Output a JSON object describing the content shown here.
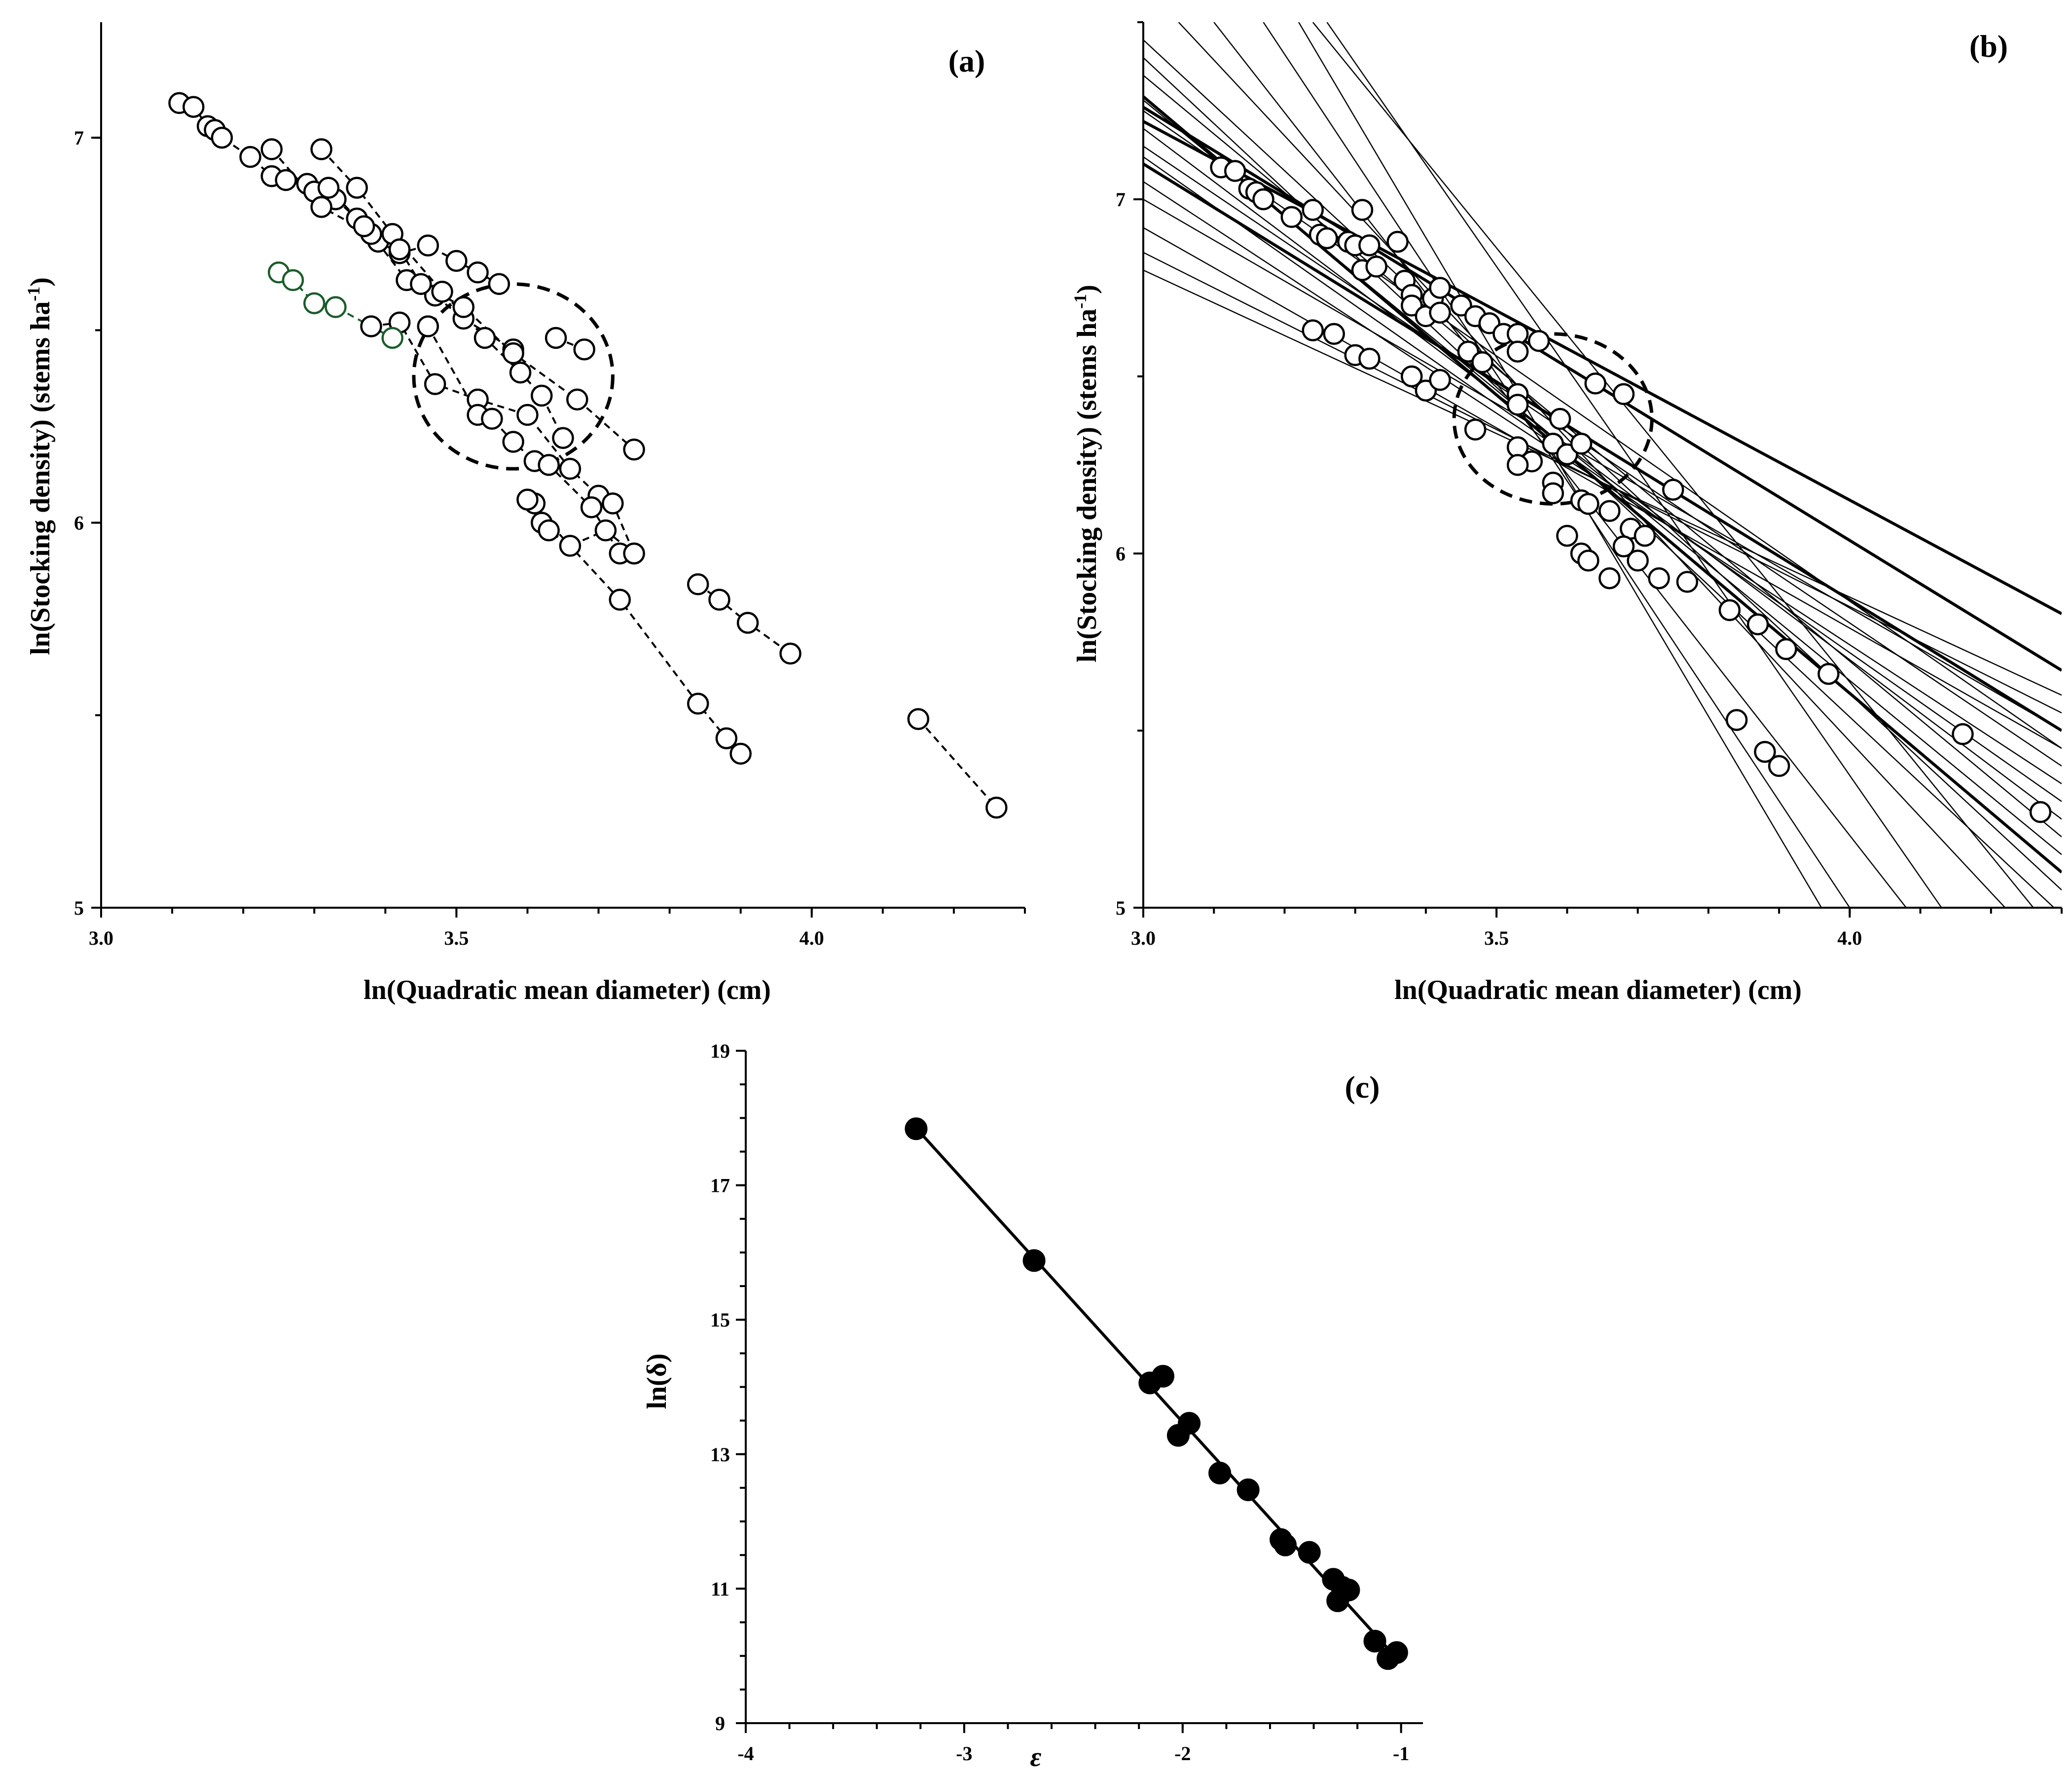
{
  "chart_data": [
    {
      "panel": "(a)",
      "type": "scatter",
      "xlabel": "ln(Quadratic  mean diameter) (cm)",
      "ylabel_main": "ln(Stocking density) (stems ha",
      "ylabel_sup": "-1",
      "ylabel_end": ")",
      "xlim": [
        3.0,
        4.3
      ],
      "ylim": [
        5.0,
        7.3
      ],
      "xticks": [
        3.0,
        3.5,
        4.0
      ],
      "xtick_labels": [
        "3.0",
        "3.5",
        "4.0"
      ],
      "yticks": [
        5,
        6,
        7
      ],
      "ytick_labels": [
        "5",
        "6",
        "7"
      ],
      "dashed_ellipse": {
        "cx": 3.58,
        "cy": 6.38,
        "rx": 0.14,
        "ry": 0.24
      },
      "series": [
        {
          "name": "plot-1",
          "color": "#000000",
          "points": [
            [
              3.11,
              7.09
            ],
            [
              3.13,
              7.08
            ],
            [
              3.15,
              7.03
            ],
            [
              3.16,
              7.02
            ],
            [
              3.17,
              7.0
            ],
            [
              3.21,
              6.95
            ],
            [
              3.24,
              6.9
            ],
            [
              3.26,
              6.89
            ],
            [
              3.29,
              6.88
            ],
            [
              3.3,
              6.86
            ],
            [
              3.33,
              6.84
            ],
            [
              3.36,
              6.79
            ],
            [
              3.39,
              6.73
            ],
            [
              3.42,
              6.7
            ],
            [
              3.46,
              6.72
            ],
            [
              3.5,
              6.68
            ],
            [
              3.53,
              6.65
            ],
            [
              3.56,
              6.62
            ]
          ]
        },
        {
          "name": "plot-2",
          "color": "#000000",
          "points": [
            [
              3.24,
              6.97
            ],
            [
              3.31,
              6.82
            ],
            [
              3.38,
              6.75
            ],
            [
              3.43,
              6.63
            ],
            [
              3.47,
              6.59
            ],
            [
              3.51,
              6.53
            ],
            [
              3.58,
              6.45
            ]
          ]
        },
        {
          "name": "plot-3",
          "color": "#000000",
          "points": [
            [
              3.31,
              6.97
            ],
            [
              3.36,
              6.87
            ],
            [
              3.41,
              6.75
            ],
            [
              3.48,
              6.6
            ],
            [
              3.54,
              6.48
            ],
            [
              3.59,
              6.39
            ],
            [
              3.62,
              6.33
            ],
            [
              3.65,
              6.22
            ]
          ]
        },
        {
          "name": "plot-4",
          "color": "#000000",
          "points": [
            [
              3.32,
              6.87
            ],
            [
              3.37,
              6.77
            ],
            [
              3.42,
              6.71
            ],
            [
              3.45,
              6.62
            ],
            [
              3.51,
              6.56
            ],
            [
              3.58,
              6.44
            ],
            [
              3.67,
              6.32
            ],
            [
              3.75,
              6.19
            ]
          ]
        },
        {
          "name": "plot-5",
          "color": "#000000",
          "points": [
            [
              3.64,
              6.48
            ],
            [
              3.68,
              6.45
            ]
          ]
        },
        {
          "name": "plot-6",
          "color": "#000000",
          "points": [
            [
              3.38,
              6.51
            ],
            [
              3.42,
              6.52
            ],
            [
              3.47,
              6.36
            ],
            [
              3.53,
              6.32
            ],
            [
              3.6,
              6.28
            ],
            [
              3.66,
              6.14
            ],
            [
              3.7,
              6.07
            ],
            [
              3.72,
              6.05
            ],
            [
              3.75,
              5.92
            ]
          ]
        },
        {
          "name": "plot-7",
          "color": "#000000",
          "points": [
            [
              3.46,
              6.51
            ],
            [
              3.53,
              6.28
            ],
            [
              3.55,
              6.27
            ],
            [
              3.58,
              6.21
            ],
            [
              3.61,
              6.16
            ],
            [
              3.63,
              6.15
            ],
            [
              3.69,
              6.04
            ],
            [
              3.73,
              5.92
            ]
          ]
        },
        {
          "name": "plot-8",
          "color": "#000000",
          "points": [
            [
              3.61,
              6.05
            ],
            [
              3.62,
              6.0
            ],
            [
              3.63,
              5.98
            ],
            [
              3.66,
              5.94
            ],
            [
              3.71,
              5.98
            ],
            [
              3.75,
              5.92
            ]
          ]
        },
        {
          "name": "plot-9",
          "color": "#000000",
          "points": [
            [
              3.84,
              5.84
            ],
            [
              3.87,
              5.8
            ],
            [
              3.91,
              5.74
            ],
            [
              3.97,
              5.66
            ]
          ]
        },
        {
          "name": "plot-10",
          "color": "#000000",
          "points": [
            [
              3.6,
              6.06
            ],
            [
              3.73,
              5.8
            ],
            [
              3.84,
              5.53
            ],
            [
              3.88,
              5.44
            ],
            [
              3.9,
              5.4
            ]
          ]
        },
        {
          "name": "plot-11",
          "color": "#000000",
          "points": [
            [
              4.15,
              5.49
            ],
            [
              4.26,
              5.26
            ]
          ]
        },
        {
          "name": "plot-green",
          "color": "#1a5c2a",
          "points": [
            [
              3.25,
              6.65
            ],
            [
              3.27,
              6.63
            ],
            [
              3.3,
              6.57
            ],
            [
              3.33,
              6.56
            ],
            [
              3.41,
              6.48
            ]
          ]
        }
      ]
    },
    {
      "panel": "(b)",
      "type": "scatter-with-lines",
      "xlabel": "ln(Quadratic  mean diameter) (cm)",
      "ylabel_main": "ln(Stocking density) (stems ha",
      "ylabel_sup": "-1",
      "ylabel_end": ")",
      "xlim": [
        3.0,
        4.3
      ],
      "ylim": [
        5.0,
        7.5
      ],
      "xticks": [
        3.0,
        3.5,
        4.0
      ],
      "xtick_labels": [
        "3.0",
        "3.5",
        "4.0"
      ],
      "yticks": [
        5,
        6,
        7
      ],
      "ytick_labels": [
        "5",
        "6",
        "7"
      ],
      "dashed_ellipse": {
        "cx": 3.58,
        "cy": 6.38,
        "rx": 0.14,
        "ry": 0.24
      },
      "points": [
        [
          3.11,
          7.09
        ],
        [
          3.13,
          7.08
        ],
        [
          3.15,
          7.03
        ],
        [
          3.16,
          7.02
        ],
        [
          3.17,
          7.0
        ],
        [
          3.21,
          6.95
        ],
        [
          3.24,
          6.97
        ],
        [
          3.25,
          6.9
        ],
        [
          3.26,
          6.89
        ],
        [
          3.29,
          6.88
        ],
        [
          3.3,
          6.87
        ],
        [
          3.31,
          6.97
        ],
        [
          3.32,
          6.87
        ],
        [
          3.31,
          6.8
        ],
        [
          3.33,
          6.81
        ],
        [
          3.36,
          6.88
        ],
        [
          3.37,
          6.77
        ],
        [
          3.38,
          6.73
        ],
        [
          3.38,
          6.7
        ],
        [
          3.4,
          6.67
        ],
        [
          3.41,
          6.72
        ],
        [
          3.42,
          6.75
        ],
        [
          3.42,
          6.68
        ],
        [
          3.45,
          6.7
        ],
        [
          3.47,
          6.67
        ],
        [
          3.49,
          6.65
        ],
        [
          3.51,
          6.62
        ],
        [
          3.53,
          6.62
        ],
        [
          3.53,
          6.57
        ],
        [
          3.56,
          6.6
        ],
        [
          3.46,
          6.57
        ],
        [
          3.48,
          6.54
        ],
        [
          3.24,
          6.63
        ],
        [
          3.27,
          6.62
        ],
        [
          3.3,
          6.56
        ],
        [
          3.32,
          6.55
        ],
        [
          3.38,
          6.5
        ],
        [
          3.4,
          6.46
        ],
        [
          3.42,
          6.49
        ],
        [
          3.47,
          6.35
        ],
        [
          3.53,
          6.45
        ],
        [
          3.53,
          6.42
        ],
        [
          3.64,
          6.48
        ],
        [
          3.68,
          6.45
        ],
        [
          3.53,
          6.3
        ],
        [
          3.55,
          6.26
        ],
        [
          3.53,
          6.25
        ],
        [
          3.58,
          6.31
        ],
        [
          3.59,
          6.38
        ],
        [
          3.6,
          6.28
        ],
        [
          3.62,
          6.31
        ],
        [
          3.58,
          6.2
        ],
        [
          3.58,
          6.17
        ],
        [
          3.62,
          6.15
        ],
        [
          3.63,
          6.14
        ],
        [
          3.66,
          6.12
        ],
        [
          3.69,
          6.07
        ],
        [
          3.71,
          6.05
        ],
        [
          3.68,
          6.02
        ],
        [
          3.7,
          5.98
        ],
        [
          3.75,
          6.18
        ],
        [
          3.6,
          6.05
        ],
        [
          3.62,
          6.0
        ],
        [
          3.63,
          5.98
        ],
        [
          3.66,
          5.93
        ],
        [
          3.73,
          5.93
        ],
        [
          3.77,
          5.92
        ],
        [
          3.83,
          5.84
        ],
        [
          3.87,
          5.8
        ],
        [
          3.91,
          5.73
        ],
        [
          3.97,
          5.66
        ],
        [
          3.84,
          5.53
        ],
        [
          3.88,
          5.44
        ],
        [
          3.9,
          5.4
        ],
        [
          4.16,
          5.49
        ],
        [
          4.27,
          5.27
        ]
      ],
      "lines": [
        {
          "x1": 3.0,
          "y1": 7.22,
          "x2": 4.3,
          "y2": 5.83,
          "weight": "bold"
        },
        {
          "x1": 3.0,
          "y1": 7.26,
          "x2": 4.3,
          "y2": 5.67,
          "weight": "bold"
        },
        {
          "x1": 3.0,
          "y1": 7.1,
          "x2": 4.3,
          "y2": 5.5,
          "weight": "bold"
        },
        {
          "x1": 3.0,
          "y1": 7.29,
          "x2": 4.3,
          "y2": 5.1,
          "weight": "bold"
        },
        {
          "x1": 3.0,
          "y1": 6.92,
          "x2": 4.3,
          "y2": 5.45,
          "weight": "thin"
        },
        {
          "x1": 3.0,
          "y1": 6.85,
          "x2": 4.3,
          "y2": 5.55,
          "weight": "thin"
        },
        {
          "x1": 3.0,
          "y1": 6.8,
          "x2": 4.3,
          "y2": 5.6,
          "weight": "thin"
        },
        {
          "x1": 3.0,
          "y1": 7.05,
          "x2": 4.3,
          "y2": 5.35,
          "weight": "thin"
        },
        {
          "x1": 3.0,
          "y1": 7.15,
          "x2": 4.3,
          "y2": 5.4,
          "weight": "thin"
        },
        {
          "x1": 3.0,
          "y1": 7.2,
          "x2": 4.3,
          "y2": 5.25,
          "weight": "thin"
        },
        {
          "x1": 3.0,
          "y1": 7.28,
          "x2": 4.3,
          "y2": 5.15,
          "weight": "thin"
        },
        {
          "x1": 3.0,
          "y1": 7.35,
          "x2": 4.3,
          "y2": 5.2,
          "weight": "thin"
        },
        {
          "x1": 3.0,
          "y1": 7.4,
          "x2": 4.3,
          "y2": 4.98,
          "weight": "thin"
        },
        {
          "x1": 3.0,
          "y1": 7.25,
          "x2": 4.3,
          "y2": 5.45,
          "weight": "thin"
        },
        {
          "x1": 3.0,
          "y1": 7.12,
          "x2": 4.3,
          "y2": 5.3,
          "weight": "thin"
        },
        {
          "x1": 3.0,
          "y1": 7.0,
          "x2": 4.3,
          "y2": 5.5,
          "weight": "thin"
        },
        {
          "x1": 3.0,
          "y1": 7.45,
          "x2": 4.3,
          "y2": 5.05,
          "weight": "thin"
        },
        {
          "x1": 3.05,
          "y1": 7.5,
          "x2": 4.22,
          "y2": 5.0,
          "weight": "thin"
        },
        {
          "x1": 3.1,
          "y1": 7.5,
          "x2": 4.08,
          "y2": 5.0,
          "weight": "thin"
        },
        {
          "x1": 3.17,
          "y1": 7.5,
          "x2": 4.0,
          "y2": 5.0,
          "weight": "thin"
        },
        {
          "x1": 3.22,
          "y1": 7.5,
          "x2": 3.96,
          "y2": 5.0,
          "weight": "thin"
        },
        {
          "x1": 3.26,
          "y1": 7.5,
          "x2": 4.13,
          "y2": 5.0,
          "weight": "thin"
        },
        {
          "x1": 3.24,
          "y1": 7.5,
          "x2": 4.26,
          "y2": 5.0,
          "weight": "thin"
        }
      ]
    },
    {
      "panel": "(c)",
      "type": "scatter-with-fit",
      "xlabel": "ε",
      "ylabel": "ln(δ)",
      "xlim": [
        -4,
        -0.9
      ],
      "ylim": [
        9,
        19
      ],
      "xticks": [
        -4,
        -3,
        -2,
        -1
      ],
      "xtick_labels": [
        "-4",
        "-3",
        "-2",
        "-1"
      ],
      "yticks": [
        9,
        11,
        13,
        15,
        17,
        19
      ],
      "ytick_labels": [
        "9",
        "11",
        "13",
        "15",
        "17",
        "19"
      ],
      "fit_line": {
        "x1": -3.22,
        "y1": 17.85,
        "x2": -1.03,
        "y2": 10.0
      },
      "points": [
        [
          -3.22,
          17.84
        ],
        [
          -2.68,
          15.88
        ],
        [
          -2.15,
          14.06
        ],
        [
          -2.09,
          14.16
        ],
        [
          -2.02,
          13.28
        ],
        [
          -1.97,
          13.46
        ],
        [
          -1.83,
          12.72
        ],
        [
          -1.7,
          12.47
        ],
        [
          -1.55,
          11.73
        ],
        [
          -1.53,
          11.65
        ],
        [
          -1.42,
          11.54
        ],
        [
          -1.31,
          11.14
        ],
        [
          -1.29,
          10.82
        ],
        [
          -1.27,
          11.02
        ],
        [
          -1.24,
          10.98
        ],
        [
          -1.12,
          10.22
        ],
        [
          -1.06,
          9.96
        ],
        [
          -1.02,
          10.05
        ]
      ]
    }
  ]
}
